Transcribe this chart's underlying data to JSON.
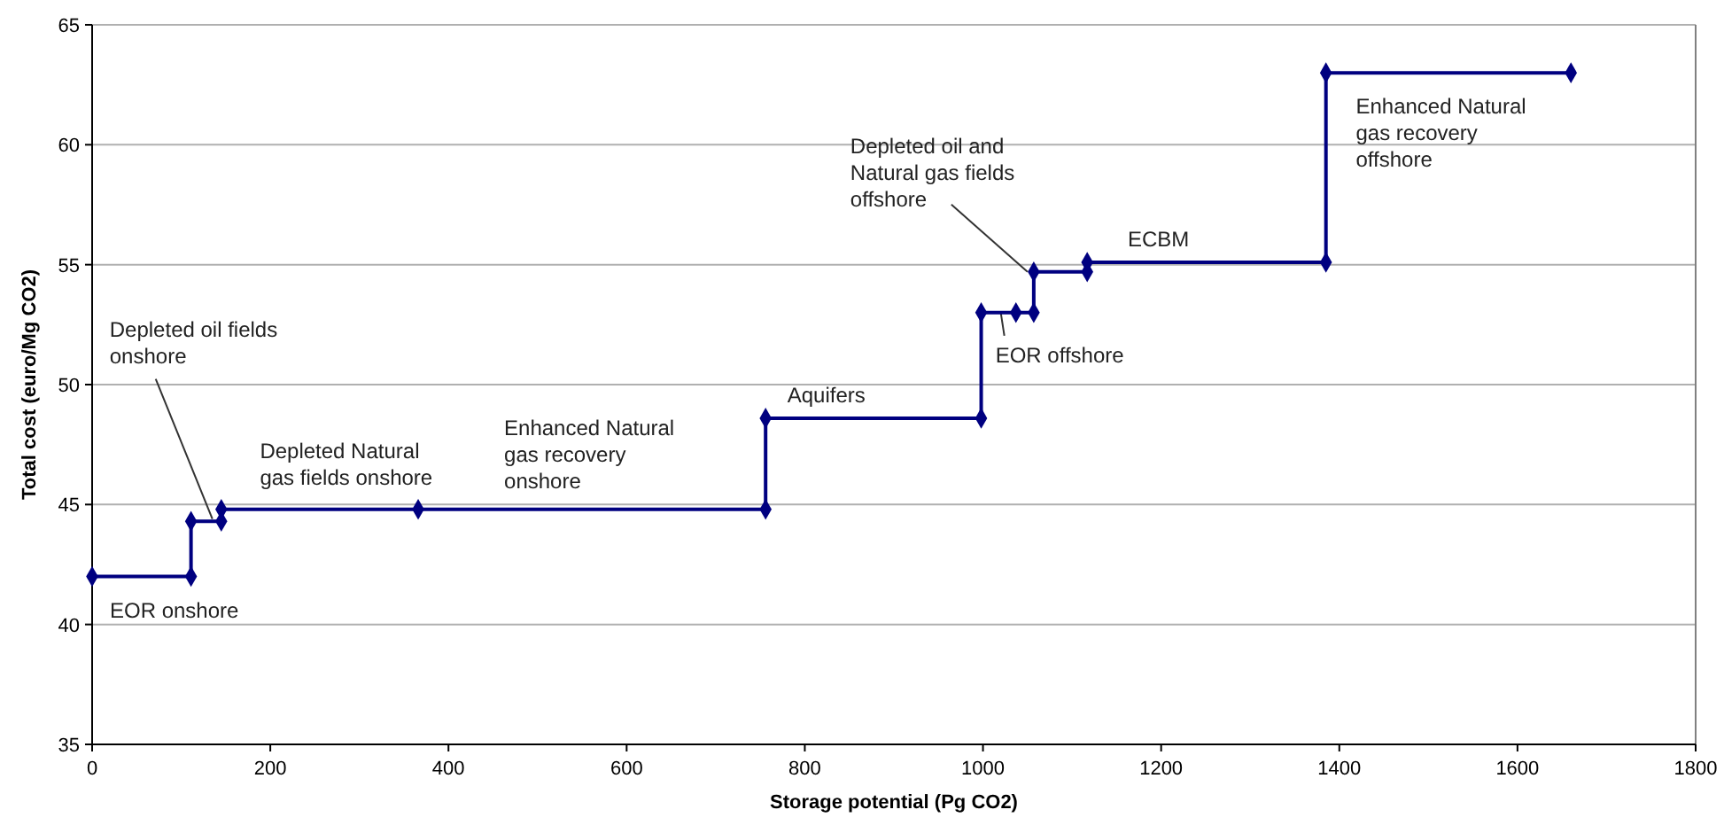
{
  "chart_data": {
    "type": "line",
    "xlabel": "Storage potential (Pg CO2)",
    "ylabel": "Total cost (euro/Mg CO2)",
    "x": [
      0,
      111,
      111,
      145,
      145,
      366,
      756,
      756,
      998,
      998,
      1037,
      1057,
      1057,
      1117,
      1117,
      1385,
      1385,
      1660
    ],
    "series": [
      {
        "color": "#000080",
        "values": [
          42,
          42,
          44.3,
          44.3,
          44.8,
          44.8,
          44.8,
          48.6,
          48.6,
          53,
          53,
          53,
          54.7,
          54.7,
          55.1,
          55.1,
          63,
          63
        ]
      }
    ],
    "xlim": [
      0,
      1800
    ],
    "xticks": [
      0,
      200,
      400,
      600,
      800,
      1000,
      1200,
      1400,
      1600,
      1800
    ],
    "ylim": [
      35,
      65
    ],
    "yticks": [
      35,
      40,
      45,
      50,
      55,
      60,
      65
    ],
    "grid": "y",
    "marker": "diamond",
    "line_style": "solid",
    "annotations": [
      {
        "text": "EOR onshore",
        "x": 0,
        "y": 42
      },
      {
        "text": "Depleted oil fields\nonshore",
        "x": 135,
        "y": 44.4
      },
      {
        "text": "Depleted Natural\ngas fields onshore",
        "x": 250,
        "y": 44.8
      },
      {
        "text": "Enhanced Natural\ngas recovery\nonshore",
        "x": 550,
        "y": 44.8
      },
      {
        "text": "Aquifers",
        "x": 850,
        "y": 48.6
      },
      {
        "text": "Depleted oil and\nNatural gas fields\noffshore",
        "x": 1050,
        "y": 54.7
      },
      {
        "text": "EOR offshore",
        "x": 1020,
        "y": 53
      },
      {
        "text": "ECBM",
        "x": 1250,
        "y": 55.1
      },
      {
        "text": "Enhanced Natural\ngas recovery\noffshore",
        "x": 1520,
        "y": 63
      }
    ]
  }
}
